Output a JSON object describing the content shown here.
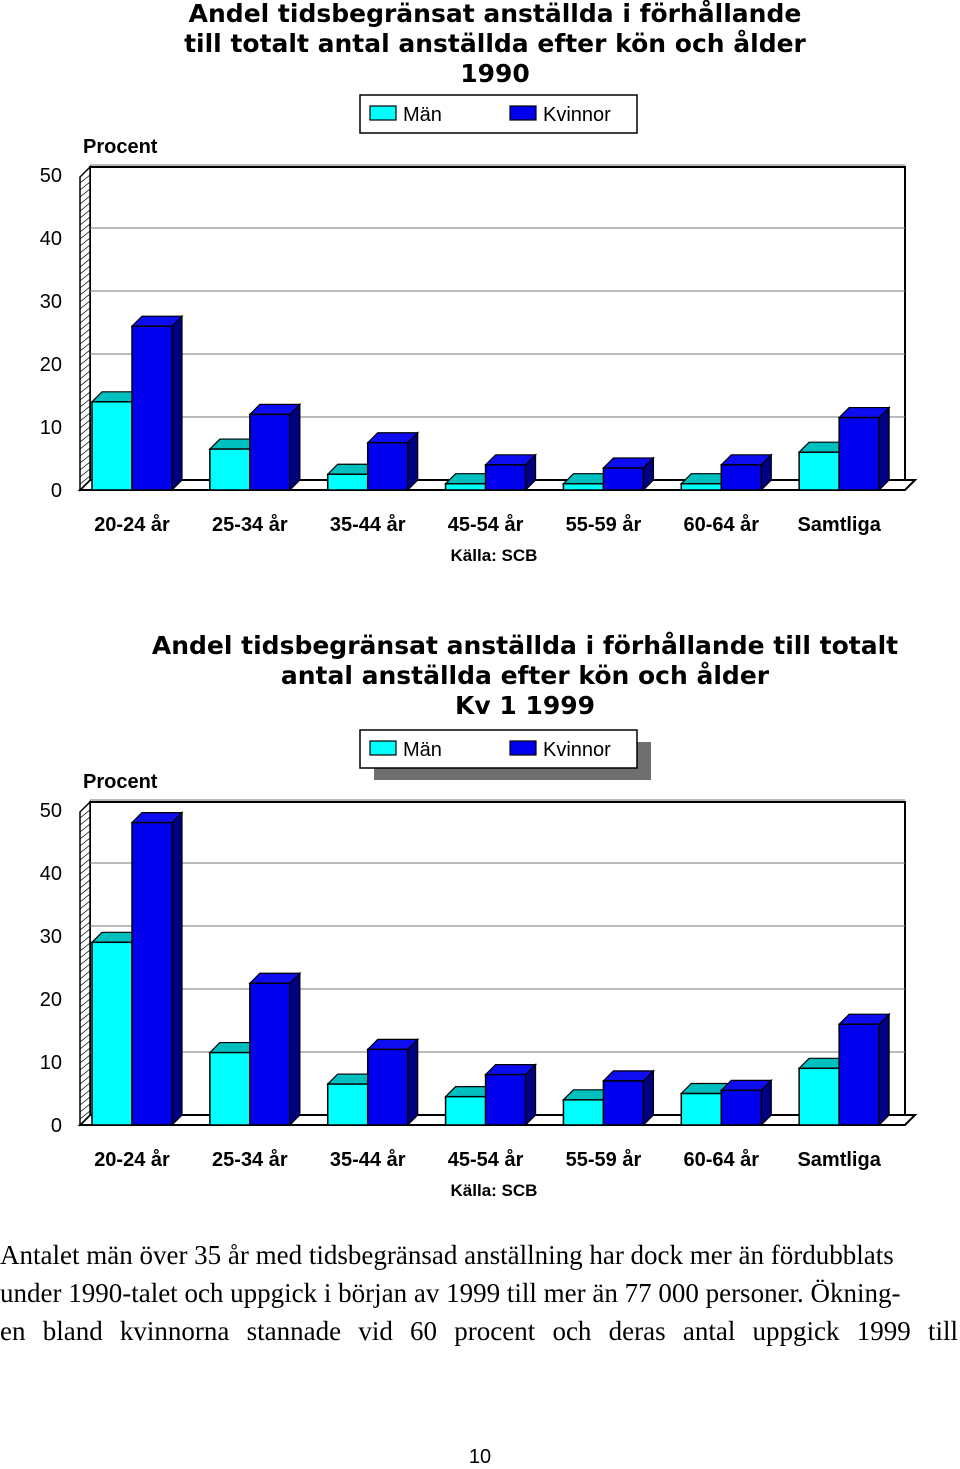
{
  "colors": {
    "man": "#00ffff",
    "woman": "#0000ee",
    "ink": "#000000"
  },
  "chart_data": [
    {
      "type": "bar",
      "title": "Andel tidsbegränsat anställda i förhållande\ntill totalt antal anställda efter kön och ålder\n1990",
      "ylabel": "Procent",
      "source": "Källa: SCB",
      "categories": [
        "20-24 år",
        "25-34 år",
        "35-44 år",
        "45-54 år",
        "55-59 år",
        "60-64 år",
        "Samtliga"
      ],
      "series": [
        {
          "name": "Män",
          "values": [
            14,
            6.5,
            2.5,
            1,
            1,
            1,
            6
          ]
        },
        {
          "name": "Kvinnor",
          "values": [
            26,
            12,
            7.5,
            4,
            3.5,
            4,
            11.5
          ]
        }
      ],
      "yticks": [
        "0",
        "10",
        "20",
        "30",
        "40",
        "50"
      ],
      "ylim": [
        0,
        50
      ],
      "legend": "top",
      "grid": true
    },
    {
      "type": "bar",
      "title": "Andel tidsbegränsat anställda i förhållande till totalt\nantal anställda efter kön och ålder\nKv 1 1999",
      "ylabel": "Procent",
      "source": "Källa: SCB",
      "categories": [
        "20-24 år",
        "25-34 år",
        "35-44 år",
        "45-54 år",
        "55-59 år",
        "60-64 år",
        "Samtliga"
      ],
      "series": [
        {
          "name": "Män",
          "values": [
            29,
            11.5,
            6.5,
            4.5,
            4,
            5,
            9
          ]
        },
        {
          "name": "Kvinnor",
          "values": [
            48,
            22.5,
            12,
            8,
            7,
            5.5,
            16
          ]
        }
      ],
      "yticks": [
        "0",
        "10",
        "20",
        "30",
        "40",
        "50"
      ],
      "ylim": [
        0,
        50
      ],
      "legend": "top",
      "grid": true
    }
  ],
  "body_text": [
    "Antalet män över 35 år med tidsbegränsad anställning har dock mer än fördubblats",
    "under 1990-talet och uppgick i början av 1999 till mer än 77 000 personer. Ökning-",
    "en bland kvinnorna stannade vid 60 procent och deras antal uppgick 1999 till"
  ],
  "page_number": "10"
}
